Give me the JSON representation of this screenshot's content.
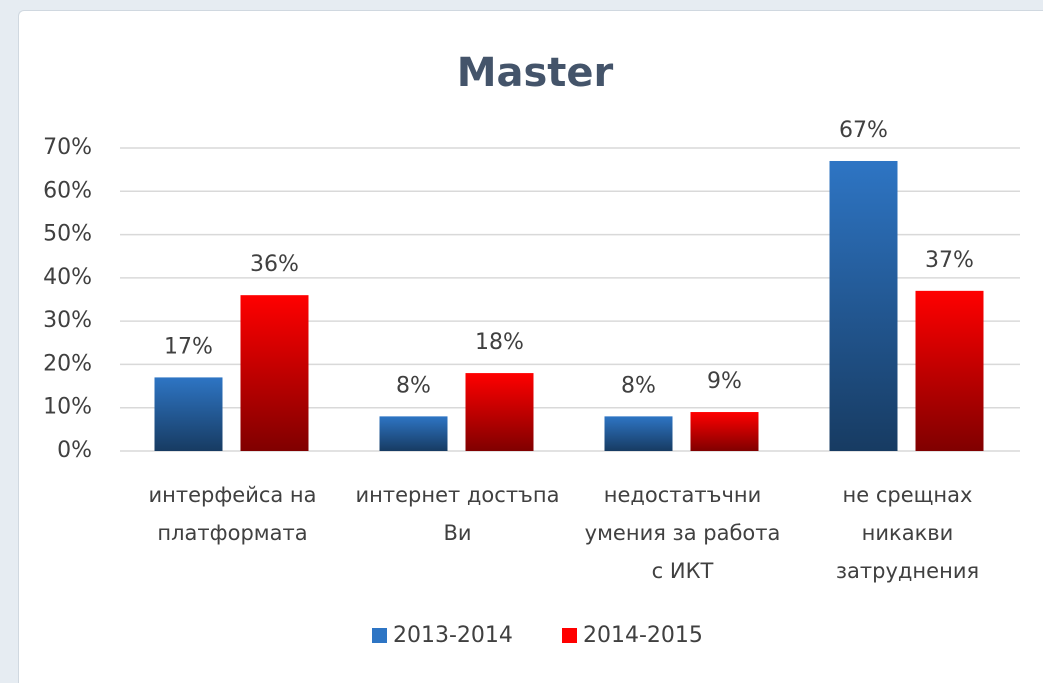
{
  "chart_data": {
    "type": "bar",
    "title": "Master",
    "categories": [
      "интерфейса на платформата",
      "интернет достъпа Ви",
      "недостатъчни умения за работа с ИКТ",
      "не срещнах никакви затруднения"
    ],
    "series": [
      {
        "name": "2013-2014",
        "color": "#2e75c4",
        "values": [
          17,
          8,
          8,
          67
        ],
        "value_labels": [
          "17%",
          "8%",
          "8%",
          "67%"
        ]
      },
      {
        "name": "2014-2015",
        "color": "#ff0000",
        "values": [
          36,
          18,
          9,
          37
        ],
        "value_labels": [
          "36%",
          "18%",
          "9%",
          "37%"
        ]
      }
    ],
    "ylim": [
      0,
      70
    ],
    "yticks": [
      {
        "value": 0,
        "label": "0%"
      },
      {
        "value": 10,
        "label": "10%"
      },
      {
        "value": 20,
        "label": "20%"
      },
      {
        "value": 30,
        "label": "30%"
      },
      {
        "value": 40,
        "label": "40%"
      },
      {
        "value": 50,
        "label": "50%"
      },
      {
        "value": 60,
        "label": "60%"
      },
      {
        "value": 70,
        "label": "70%"
      }
    ],
    "grid": true,
    "legend": "bottom"
  }
}
